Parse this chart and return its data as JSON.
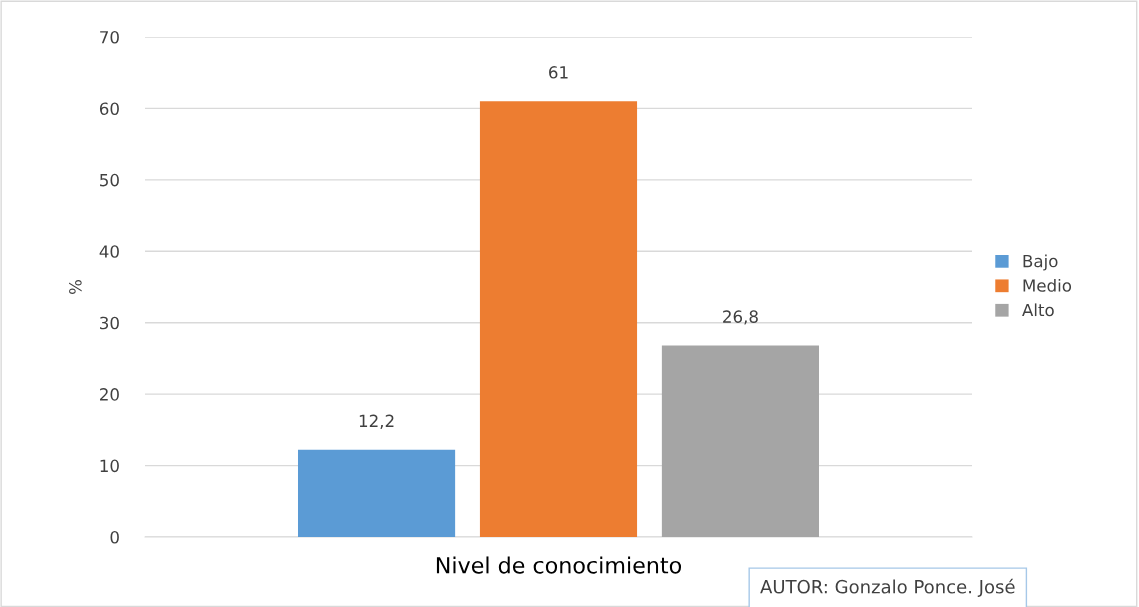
{
  "chart_data": {
    "type": "bar",
    "ylabel": "%",
    "categories": [
      "Nivel de conocimiento"
    ],
    "series": [
      {
        "name": "Bajo",
        "color": "#5b9bd5",
        "values": [
          12.2
        ],
        "value_labels": [
          "12,2"
        ]
      },
      {
        "name": "Medio",
        "color": "#ed7d31",
        "values": [
          61
        ],
        "value_labels": [
          "61"
        ]
      },
      {
        "name": "Alto",
        "color": "#a5a5a5",
        "values": [
          26.8
        ],
        "value_labels": [
          "26,8"
        ]
      }
    ],
    "ylim": [
      0,
      70
    ],
    "yticks": [
      0,
      10,
      20,
      30,
      40,
      50,
      60,
      70
    ],
    "grid": "y",
    "legend": "right",
    "annotations": [
      "AUTOR: Gonzalo Ponce. José"
    ]
  }
}
